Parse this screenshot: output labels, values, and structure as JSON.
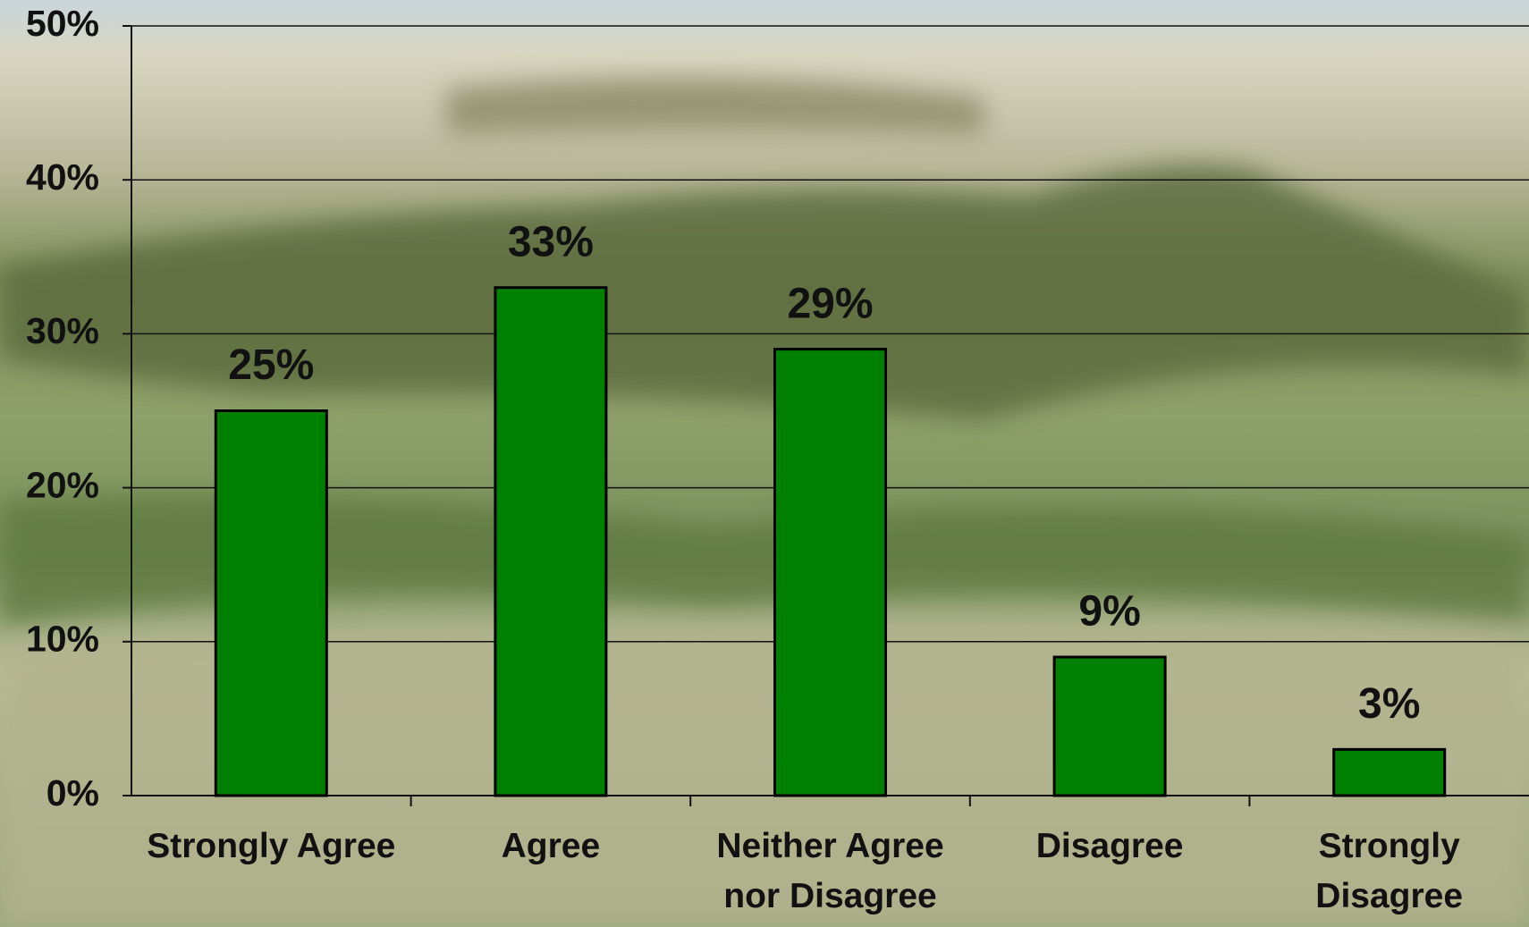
{
  "chart_data": {
    "type": "bar",
    "categories": [
      "Strongly Agree",
      "Agree",
      "Neither Agree nor Disagree",
      "Disagree",
      "Strongly Disagree"
    ],
    "values": [
      25,
      33,
      29,
      9,
      3
    ],
    "value_labels": [
      "25%",
      "33%",
      "29%",
      "9%",
      "3%"
    ],
    "color": "#008000",
    "ylim": [
      0,
      50
    ],
    "yticks": [
      {
        "value": 0,
        "label": "0%"
      },
      {
        "value": 10,
        "label": "10%"
      },
      {
        "value": 20,
        "label": "20%"
      },
      {
        "value": 30,
        "label": "30%"
      },
      {
        "value": 40,
        "label": "40%"
      },
      {
        "value": 50,
        "label": "50%"
      }
    ],
    "grid": true
  }
}
